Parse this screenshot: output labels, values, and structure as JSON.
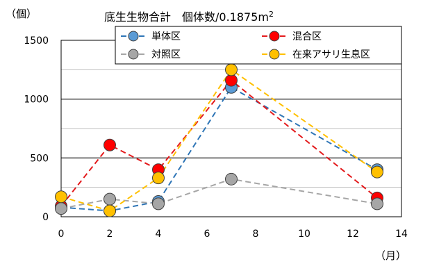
{
  "chart_data": {
    "type": "line",
    "title": "底生生物合計　個体数/0.1875m",
    "title_superscript": "2",
    "y_unit_label": "（個）",
    "x_unit_label": "（月）",
    "xlim": [
      0,
      14
    ],
    "ylim": [
      0,
      1500
    ],
    "x_ticks": [
      "0",
      "2",
      "4",
      "6",
      "8",
      "10",
      "12",
      "14"
    ],
    "y_ticks": [
      "0",
      "500",
      "1000",
      "1500"
    ],
    "grid": true,
    "legend_position": "top",
    "series": [
      {
        "name": "単体区",
        "color": "#2E75B6",
        "marker": "#5B9BD5",
        "x": [
          0,
          2,
          4,
          7,
          13
        ],
        "y": [
          80,
          50,
          130,
          1100,
          400
        ]
      },
      {
        "name": "混合区",
        "color": "#E31A1C",
        "marker": "#FF0000",
        "x": [
          0,
          2,
          4,
          7,
          13
        ],
        "y": [
          90,
          610,
          400,
          1160,
          160
        ]
      },
      {
        "name": "対照区",
        "color": "#A6A6A6",
        "marker": "#A6A6A6",
        "x": [
          0,
          2,
          4,
          7,
          13
        ],
        "y": [
          70,
          150,
          110,
          320,
          110
        ]
      },
      {
        "name": "在来アサリ生息区",
        "color": "#FFC000",
        "marker": "#FFC000",
        "x": [
          0,
          2,
          4,
          7,
          13
        ],
        "y": [
          170,
          50,
          330,
          1250,
          380
        ]
      }
    ]
  }
}
